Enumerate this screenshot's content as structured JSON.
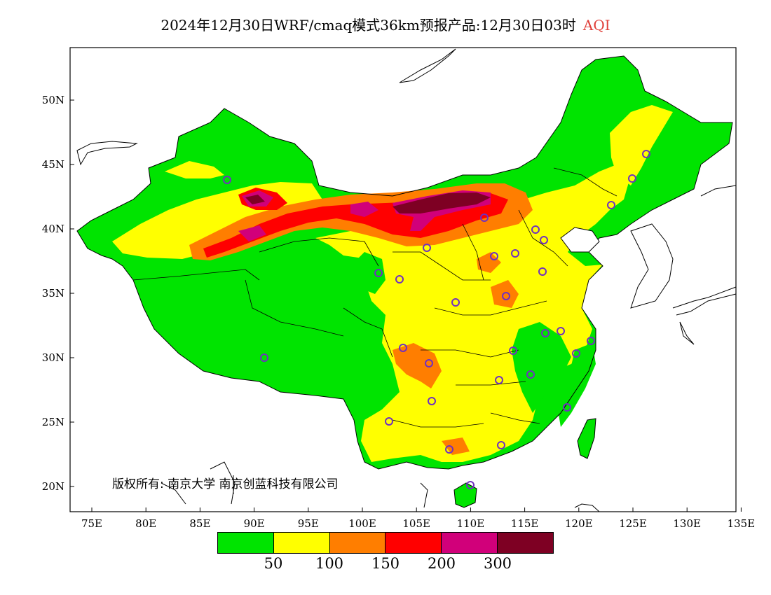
{
  "title": {
    "main": "2024年12月30日WRF/cmaq模式36km预报产品:12月30日03时",
    "variable": "AQI",
    "variable_color": "#e0403a"
  },
  "axes": {
    "x_ticks": [
      "75E",
      "80E",
      "85E",
      "90E",
      "95E",
      "100E",
      "105E",
      "110E",
      "115E",
      "120E",
      "125E",
      "130E",
      "135E"
    ],
    "y_ticks": [
      "50N",
      "45N",
      "40N",
      "35N",
      "30N",
      "25N",
      "20N"
    ]
  },
  "copyright": "版权所有: 南京大学  南京创蓝科技有限公司",
  "legend": {
    "colors": [
      "#00e400",
      "#ffff00",
      "#ff7e00",
      "#ff0000",
      "#d1007a",
      "#7e0023"
    ],
    "labels": [
      "50",
      "100",
      "150",
      "200",
      "300"
    ]
  },
  "map_colors": {
    "good": "#00e400",
    "moderate": "#ffff00",
    "usg": "#ff7e00",
    "unhealthy": "#ff0000",
    "very_unhealthy": "#d1007a",
    "hazardous": "#7e0023",
    "station": "#7030c0"
  }
}
